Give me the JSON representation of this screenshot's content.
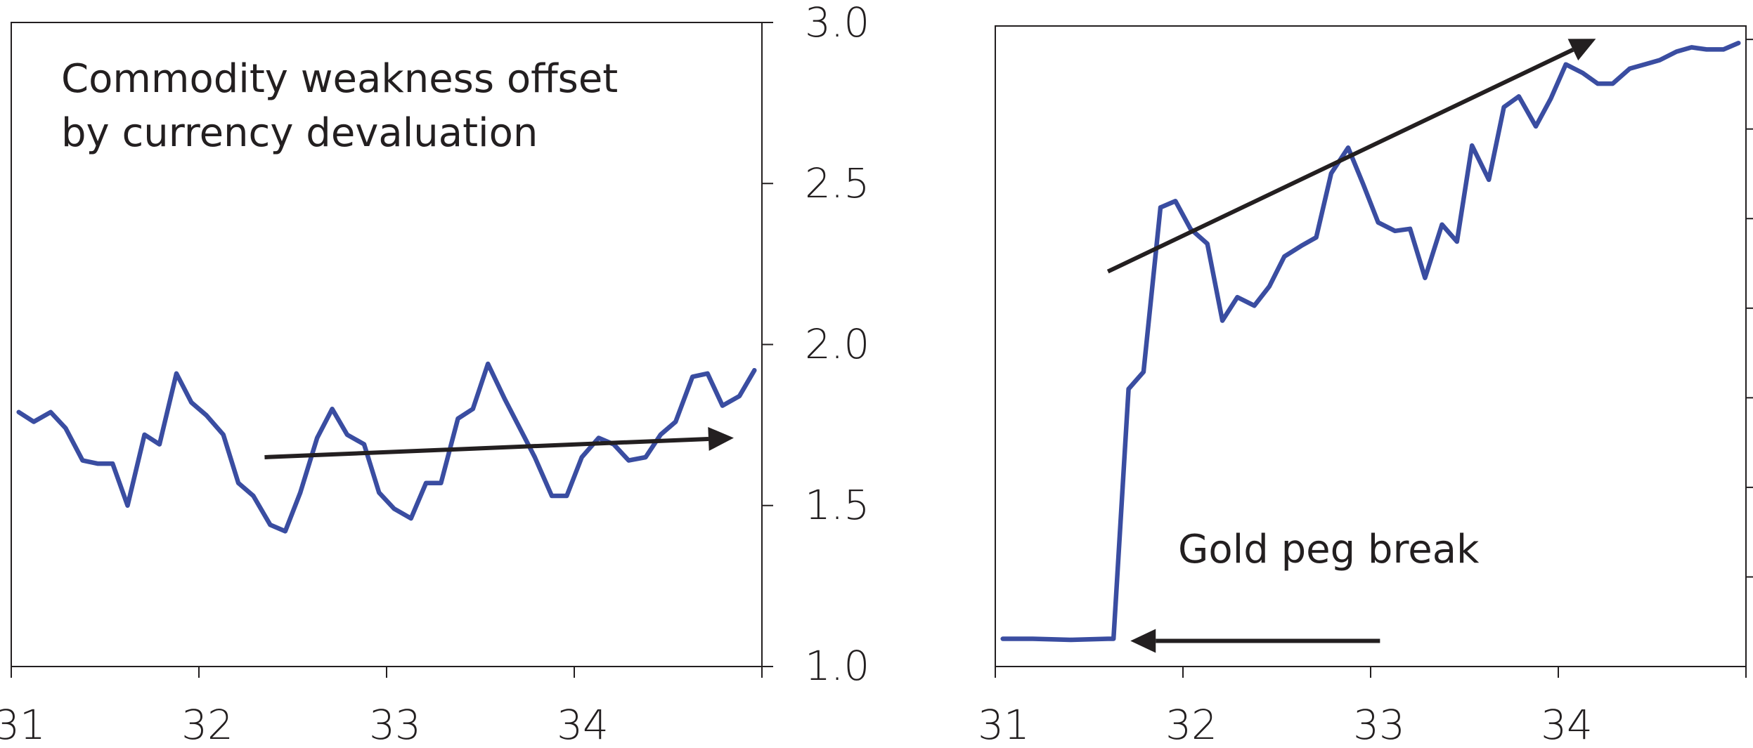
{
  "chart_data": [
    {
      "type": "line",
      "title": "",
      "xlabel": "",
      "ylabel": "",
      "xlim": [
        31,
        35
      ],
      "ylim": [
        1.0,
        3.0
      ],
      "x_ticks": [
        31,
        32,
        33,
        34,
        35
      ],
      "x_tick_labels": [
        "31",
        "32",
        "33",
        "34"
      ],
      "y_ticks": [
        1.0,
        1.5,
        2.0,
        2.5,
        3.0
      ],
      "y_tick_labels": [
        "1.0",
        "1.5",
        "2.0",
        "2.5",
        "3.0"
      ],
      "y_axis_side": "right",
      "grid": false,
      "series_color": "#3a4da1",
      "arrow_color": "#231f20",
      "series": [
        {
          "x": [
            31.04,
            31.12,
            31.21,
            31.29,
            31.38,
            31.46,
            31.54,
            31.62,
            31.71,
            31.79,
            31.88,
            31.96,
            32.04,
            32.13,
            32.21,
            32.29,
            32.38,
            32.46,
            32.54,
            32.63,
            32.71,
            32.79,
            32.88,
            32.96,
            33.04,
            33.13,
            33.21,
            33.29,
            33.38,
            33.46,
            33.54,
            33.63,
            33.71,
            33.79,
            33.88,
            33.96,
            34.04,
            34.13,
            34.21,
            34.29,
            34.38,
            34.46,
            34.54,
            34.63,
            34.71,
            34.79,
            34.88,
            34.96
          ],
          "values": [
            1.79,
            1.76,
            1.79,
            1.74,
            1.64,
            1.63,
            1.63,
            1.5,
            1.72,
            1.69,
            1.91,
            1.82,
            1.78,
            1.72,
            1.57,
            1.53,
            1.44,
            1.42,
            1.54,
            1.71,
            1.8,
            1.72,
            1.69,
            1.54,
            1.49,
            1.46,
            1.57,
            1.57,
            1.77,
            1.8,
            1.94,
            1.83,
            1.74,
            1.65,
            1.53,
            1.53,
            1.65,
            1.71,
            1.69,
            1.64,
            1.65,
            1.72,
            1.76,
            1.9,
            1.91,
            1.81,
            1.84,
            1.92
          ]
        }
      ],
      "annotations": [
        {
          "type": "text",
          "lines": [
            "Commodity weakness offset",
            "by currency devaluation"
          ]
        },
        {
          "type": "arrow",
          "from": {
            "x": 32.35,
            "y": 1.65
          },
          "to": {
            "x": 34.85,
            "y": 1.71
          }
        }
      ]
    },
    {
      "type": "line",
      "title": "",
      "xlabel": "",
      "ylabel": "",
      "xlim": [
        31,
        35
      ],
      "x_ticks": [
        31,
        32,
        33,
        34,
        35
      ],
      "x_tick_labels": [
        "31",
        "32",
        "33",
        "34"
      ],
      "y_tick_count": 7,
      "y_axis_side": "right",
      "grid": false,
      "series_color": "#3a4da1",
      "arrow_color": "#231f20",
      "series": [
        {
          "x": [
            31.04,
            31.2,
            31.4,
            31.6,
            31.63,
            31.71,
            31.79,
            31.88,
            31.96,
            32.04,
            32.13,
            32.21,
            32.29,
            32.38,
            32.46,
            32.54,
            32.63,
            32.71,
            32.79,
            32.88,
            32.96,
            33.04,
            33.13,
            33.21,
            33.29,
            33.38,
            33.46,
            33.54,
            33.63,
            33.71,
            33.79,
            33.88,
            33.96,
            34.04,
            34.13,
            34.21,
            34.29,
            34.38,
            34.46,
            34.54,
            34.63,
            34.71,
            34.79,
            34.88,
            34.96
          ],
          "values": [
            0.13,
            0.13,
            0.125,
            0.13,
            0.13,
            1.3,
            1.38,
            2.15,
            2.18,
            2.05,
            1.98,
            1.62,
            1.73,
            1.69,
            1.78,
            1.92,
            1.97,
            2.01,
            2.31,
            2.43,
            2.26,
            2.08,
            2.04,
            2.05,
            1.82,
            2.07,
            1.99,
            2.44,
            2.28,
            2.62,
            2.67,
            2.53,
            2.66,
            2.82,
            2.78,
            2.73,
            2.73,
            2.8,
            2.82,
            2.84,
            2.88,
            2.9,
            2.89,
            2.89,
            2.92
          ]
        }
      ],
      "annotations": [
        {
          "type": "text",
          "lines": [
            "Gold peg break"
          ]
        },
        {
          "type": "arrow",
          "from": {
            "x": 31.6,
            "y": 1.85
          },
          "to": {
            "x": 34.2,
            "y": 2.94
          }
        },
        {
          "type": "arrow",
          "from": {
            "x": 33.05,
            "y": 0.12
          },
          "to": {
            "x": 31.72,
            "y": 0.12
          }
        }
      ]
    }
  ]
}
